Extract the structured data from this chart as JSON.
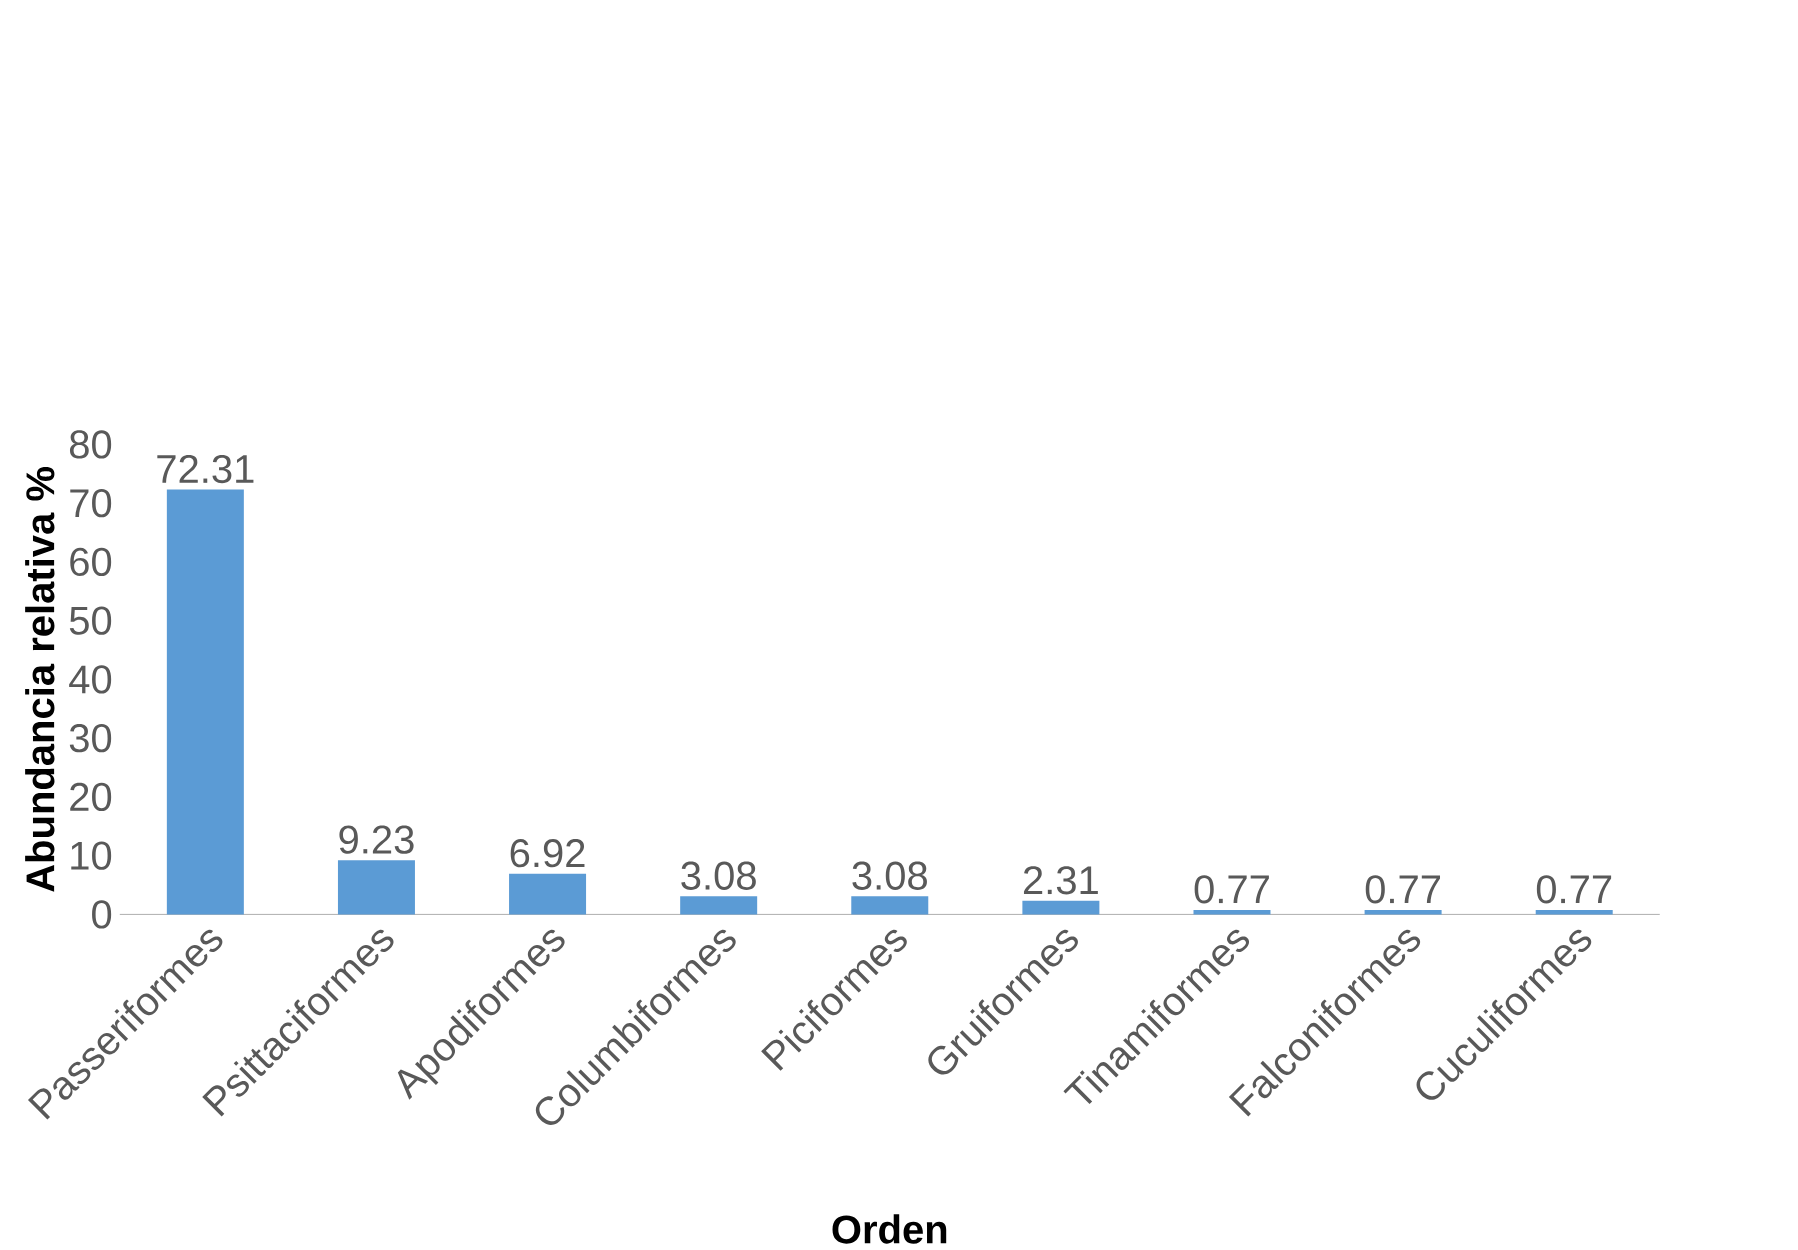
{
  "chart_data": {
    "type": "bar",
    "xlabel": "Orden",
    "ylabel": "Abundancia relativa %",
    "categories": [
      "Passeriformes",
      "Psittaciformes",
      "Apodiformes",
      "Columbiformes",
      "Piciformes",
      "Gruiformes",
      "Tinamiformes",
      "Falconiformes",
      "Cuculiformes"
    ],
    "values": [
      72.31,
      9.23,
      6.92,
      3.08,
      3.08,
      2.31,
      0.77,
      0.77,
      0.77
    ],
    "color": "#5b9bd5",
    "ylim": [
      0,
      80
    ],
    "yticks": [
      0,
      10,
      20,
      30,
      40,
      50,
      60,
      70,
      80
    ],
    "data_labels": true
  }
}
